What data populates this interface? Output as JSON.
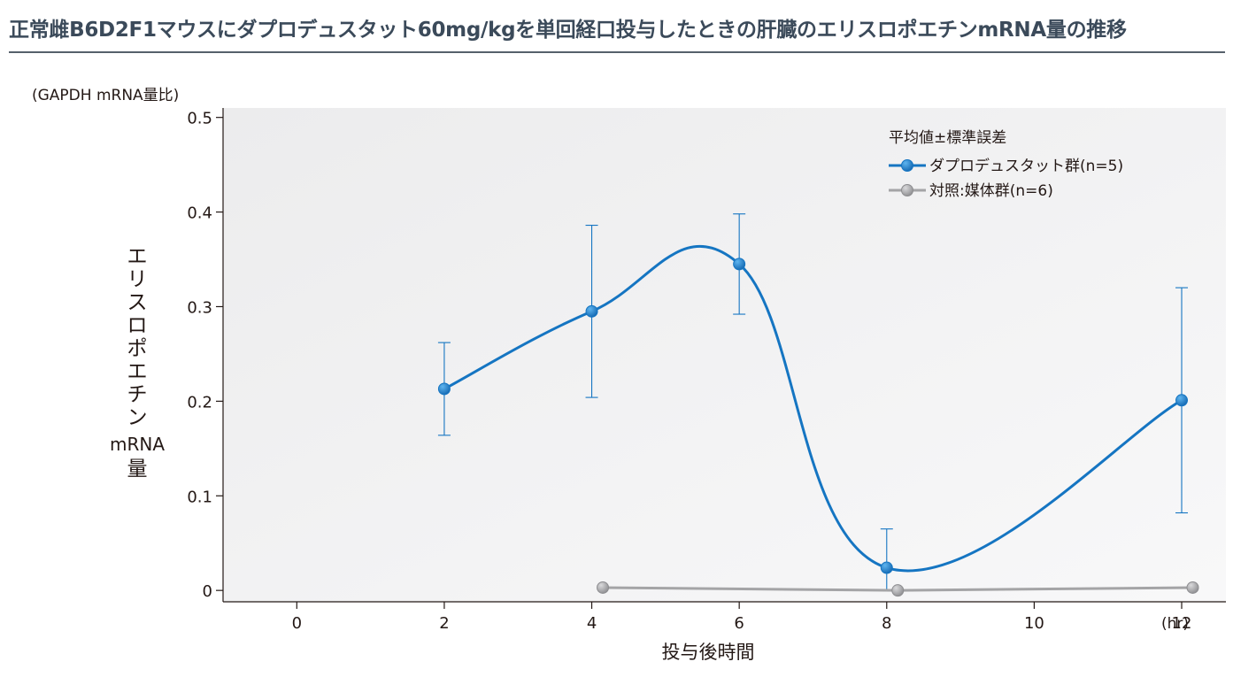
{
  "title": "正常雌B6D2F1マウスにダプロデュスタット60mg/kgを単回経口投与したときの肝臓のエリスロポエチンmRNA量の推移",
  "colors": {
    "series1": "#1575c2",
    "series2": "#a4a4a6",
    "title": "#3b4a5a",
    "plot_bg": "#f1f1f2"
  },
  "chart_data": {
    "type": "line",
    "y_unit_note": "(GAPDH mRNA量比)",
    "ylabel": "エリスロポエチン mRNA 量",
    "ylabel_lines": [
      "エ",
      "リ",
      "ス",
      "ロ",
      "ポ",
      "エ",
      "チ",
      "ン",
      "mRNA",
      "量"
    ],
    "xlabel": "投与後時間",
    "x_unit": "(hr)",
    "xlim": [
      -1,
      12.6
    ],
    "ylim": [
      -0.012,
      0.51
    ],
    "x_ticks": [
      0,
      2,
      4,
      6,
      8,
      10,
      12
    ],
    "y_ticks": [
      0,
      0.1,
      0.2,
      0.3,
      0.4,
      0.5
    ],
    "y_tick_labels": [
      "0",
      "0.1",
      "0.2",
      "0.3",
      "0.4",
      "0.5"
    ],
    "legend_title": "平均値±標準誤差",
    "legend_position": "top-right",
    "grid": false,
    "series": [
      {
        "name": "ダプロデュスタット群(n=5)",
        "color": "#1575c2",
        "smooth": true,
        "x": [
          2,
          4,
          6,
          8,
          12
        ],
        "y": [
          0.213,
          0.295,
          0.345,
          0.024,
          0.201
        ],
        "error_low": [
          0.164,
          0.204,
          0.292,
          0.0,
          0.082
        ],
        "error_high": [
          0.262,
          0.386,
          0.398,
          0.065,
          0.32
        ]
      },
      {
        "name": "対照:媒体群(n=6)",
        "color": "#a4a4a6",
        "smooth": false,
        "x": [
          4.15,
          8.15,
          12.15
        ],
        "y": [
          0.003,
          0.0,
          0.003
        ]
      }
    ]
  }
}
